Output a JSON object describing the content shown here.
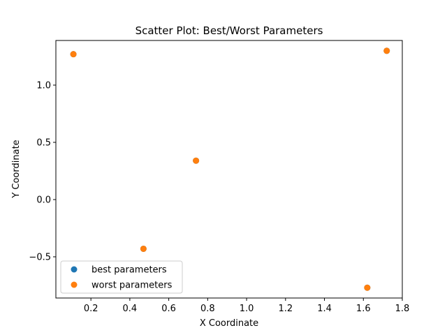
{
  "chart_data": {
    "type": "scatter",
    "title": "Scatter Plot: Best/Worst Parameters",
    "xlabel": "X Coordinate",
    "ylabel": "Y Coordinate",
    "xlim": [
      0.02,
      1.8
    ],
    "ylim": [
      -0.86,
      1.39
    ],
    "xticks": [
      0.2,
      0.4,
      0.6,
      0.8,
      1.0,
      1.2,
      1.4,
      1.6,
      1.8
    ],
    "xtick_labels": [
      "0.2",
      "0.4",
      "0.6",
      "0.8",
      "1.0",
      "1.2",
      "1.4",
      "1.6",
      "1.8"
    ],
    "yticks": [
      -0.5,
      0.0,
      0.5,
      1.0
    ],
    "ytick_labels": [
      "−0.5",
      "0.0",
      "0.5",
      "1.0"
    ],
    "grid": false,
    "legend_position": "lower-left",
    "series": [
      {
        "name": "best parameters",
        "color": "#1f77b4",
        "points": [
          {
            "x": 0.11,
            "y": 1.27
          },
          {
            "x": 1.72,
            "y": 1.3
          },
          {
            "x": 0.74,
            "y": 0.34
          },
          {
            "x": 0.47,
            "y": -0.43
          },
          {
            "x": 1.62,
            "y": -0.77
          }
        ]
      },
      {
        "name": "worst parameters",
        "color": "#ff7f0e",
        "points": [
          {
            "x": 0.11,
            "y": 1.27
          },
          {
            "x": 1.72,
            "y": 1.3
          },
          {
            "x": 0.74,
            "y": 0.34
          },
          {
            "x": 0.47,
            "y": -0.43
          },
          {
            "x": 1.62,
            "y": -0.77
          }
        ]
      }
    ]
  }
}
